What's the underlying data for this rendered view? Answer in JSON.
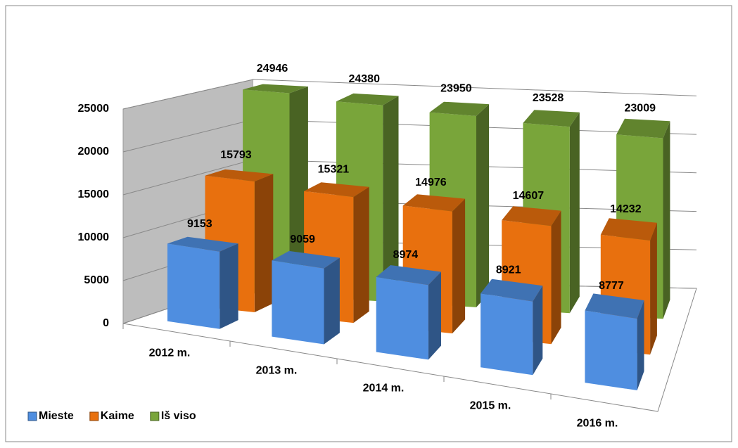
{
  "chart_data": {
    "type": "bar3d",
    "categories": [
      "2012 m.",
      "2013 m.",
      "2014 m.",
      "2015 m.",
      "2016 m."
    ],
    "series": [
      {
        "name": "Mieste",
        "color": "#4f8ee0",
        "values": [
          9153,
          9059,
          8974,
          8921,
          8777
        ]
      },
      {
        "name": "Kaime",
        "color": "#e8700e",
        "values": [
          15793,
          15321,
          14976,
          14607,
          14232
        ]
      },
      {
        "name": "Iš viso",
        "color": "#79a53a",
        "values": [
          24946,
          24380,
          23950,
          23528,
          23009
        ]
      }
    ],
    "ylim": [
      0,
      25000
    ],
    "yticks": [
      0,
      5000,
      10000,
      15000,
      20000,
      25000
    ],
    "grid": true,
    "legend": "bottom-left"
  }
}
